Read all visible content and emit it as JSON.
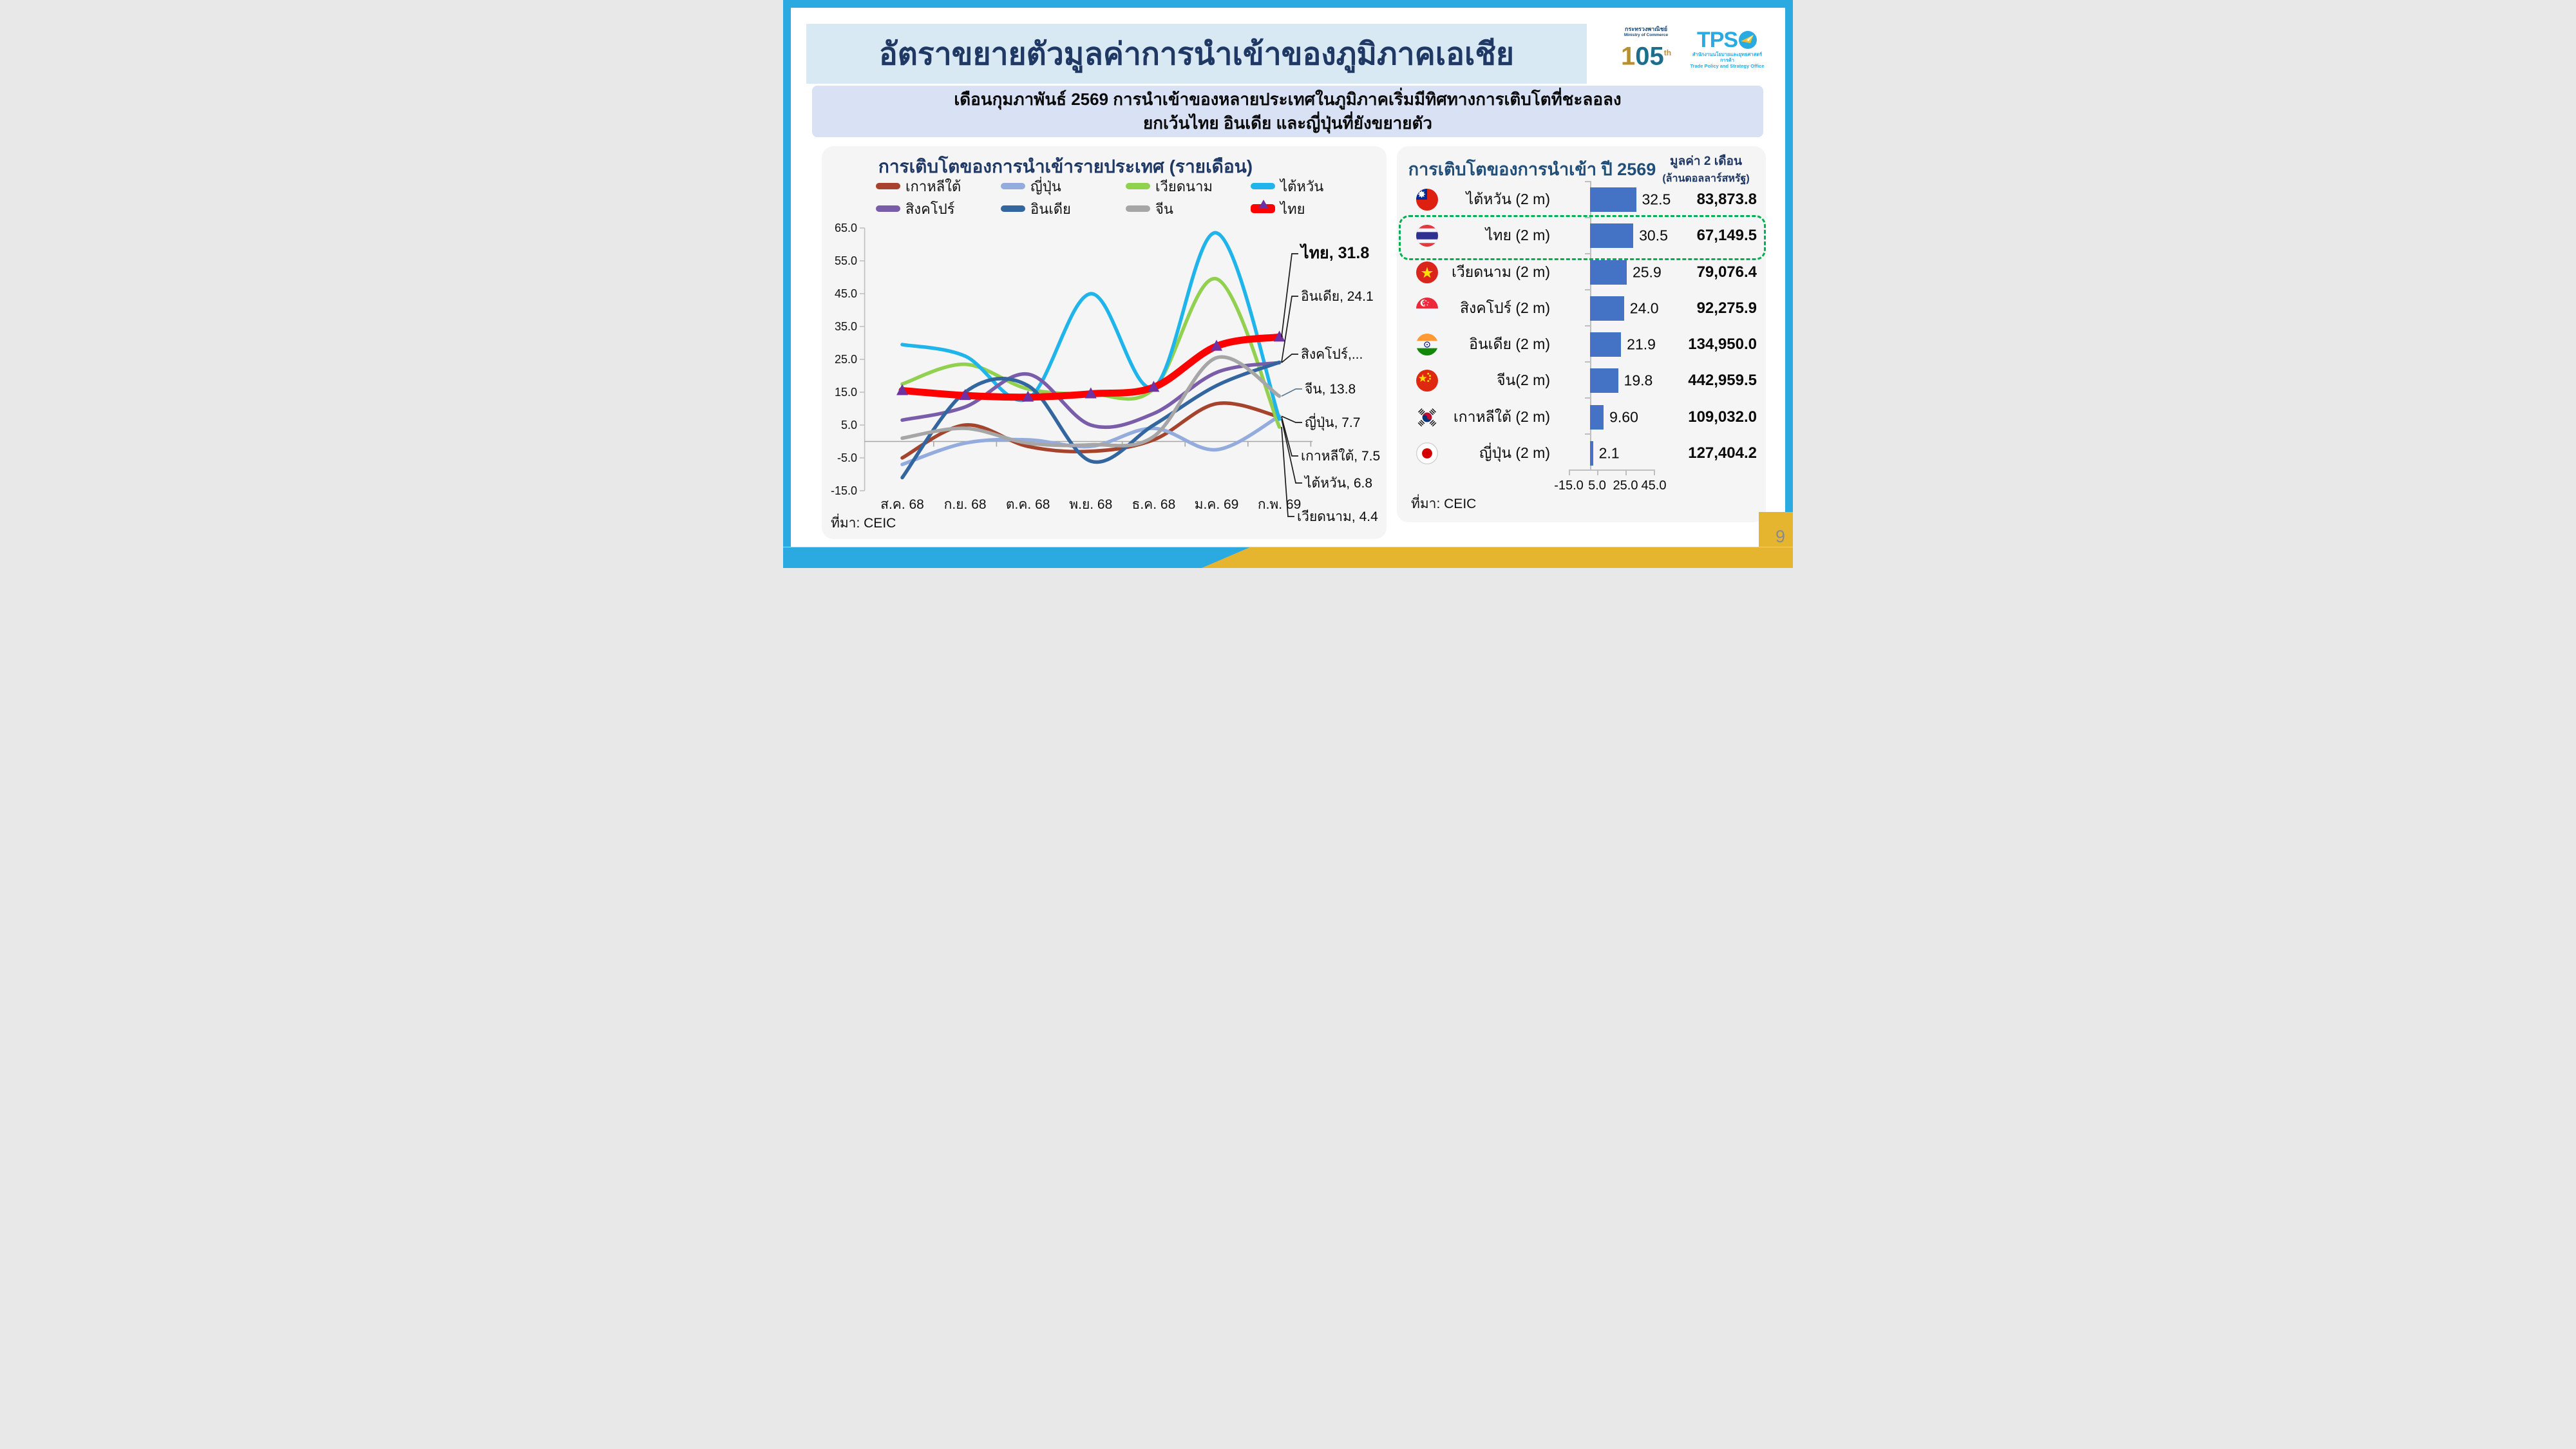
{
  "page": {
    "number": "9"
  },
  "header": {
    "title": "อัตราขยายตัวมูลค่าการนำเข้าของภูมิภาคเอเชีย"
  },
  "logos": {
    "moc": {
      "line1": "กระทรวงพาณิชย์",
      "line2": "Ministry of Commerce",
      "number_1": "1",
      "number_05": "05",
      "suffix": "th"
    },
    "tpso": {
      "acronym_tps": "TPS",
      "line1": "สำนักงานนโยบายและยุทธศาสตร์การค้า",
      "line2": "Trade Policy and Strategy Office"
    }
  },
  "subtitle": {
    "line1": "เดือนกุมภาพันธ์ 2569 การนำเข้าของหลายประเทศในภูมิภาคเริ่มมีทิศทางการเติบโตที่ชะลอลง",
    "line2": "ยกเว้นไทย อินเดีย และญี่ปุ่นที่ยังขยายตัว"
  },
  "line_panel": {
    "source": "ที่มา: CEIC"
  },
  "bar_panel": {
    "source": "ที่มา: CEIC",
    "note_line1": "มูลค่า 2 เดือน",
    "note_line2": "(ล้านดอลลาร์สหรัฐ)"
  },
  "colors": {
    "accent_border": "#2BA9E1",
    "accent_yellow": "#E6B52F",
    "bar_blue": "#4472C4",
    "highlight_green": "#00B050",
    "title_navy": "#1F3864"
  },
  "chart_data": [
    {
      "type": "line",
      "title": "การเติบโตของการนำเข้ารายประเทศ (รายเดือน)",
      "categories": [
        "ส.ค. 68",
        "ก.ย. 68",
        "ต.ค. 68",
        "พ.ย. 68",
        "ธ.ค. 68",
        "ม.ค. 69",
        "ก.พ. 69"
      ],
      "ylabel": "",
      "ylim": [
        -15,
        65
      ],
      "y_ticks": [
        "65.0",
        "55.0",
        "45.0",
        "35.0",
        "25.0",
        "15.0",
        "5.0",
        "-5.0",
        "-15.0"
      ],
      "grid": false,
      "legend_position": "top",
      "series": [
        {
          "name": "เกาหลีใต้",
          "color": "#A5432C",
          "values": [
            -5.0,
            5.0,
            -1.5,
            -3.0,
            0.5,
            11.5,
            7.5
          ]
        },
        {
          "name": "ญี่ปุ่น",
          "color": "#93ACDD",
          "values": [
            -7.0,
            -0.5,
            0.5,
            -1.5,
            4.0,
            -2.5,
            7.7
          ]
        },
        {
          "name": "เวียดนาม",
          "color": "#92D050",
          "values": [
            17.5,
            23.5,
            16.0,
            14.5,
            16.0,
            49.5,
            4.4
          ]
        },
        {
          "name": "ไต้หวัน",
          "color": "#1FB4EA",
          "values": [
            29.5,
            26.0,
            13.0,
            45.0,
            16.5,
            63.5,
            6.8
          ]
        },
        {
          "name": "สิงคโปร์",
          "color": "#7A5DA8",
          "values": [
            6.5,
            10.5,
            20.5,
            5.0,
            8.5,
            21.0,
            24.0
          ]
        },
        {
          "name": "อินเดีย",
          "color": "#33669F",
          "values": [
            -11.0,
            15.0,
            17.0,
            -6.0,
            5.0,
            17.0,
            24.1
          ]
        },
        {
          "name": "จีน",
          "color": "#A6A6A6",
          "values": [
            1.0,
            4.0,
            -0.5,
            -1.0,
            1.5,
            25.5,
            13.8
          ]
        },
        {
          "name": "ไทย",
          "color": "#FF0000",
          "values": [
            15.5,
            14.0,
            13.5,
            14.5,
            16.5,
            29.0,
            31.8
          ],
          "marker": "triangle",
          "marker_color": "#7030A0",
          "emphasis": true
        }
      ],
      "annotations": [
        {
          "text": "ไทย, 31.8",
          "series": "ไทย",
          "bold": true
        },
        {
          "text": "อินเดีย, 24.1",
          "series": "อินเดีย"
        },
        {
          "text": "สิงคโปร์,...",
          "series": "สิงคโปร์"
        },
        {
          "text": "จีน, 13.8",
          "series": "จีน"
        },
        {
          "text": "ญี่ปุ่น, 7.7",
          "series": "ญี่ปุ่น"
        },
        {
          "text": "เกาหลีใต้, 7.5",
          "series": "เกาหลีใต้"
        },
        {
          "text": "ไต้หวัน, 6.8",
          "series": "ไต้หวัน"
        },
        {
          "text": "เวียดนาม, 4.4",
          "series": "เวียดนาม"
        }
      ]
    },
    {
      "type": "bar",
      "orientation": "horizontal",
      "title": "การเติบโตของการนำเข้า ปี 2569",
      "xlim": [
        -15,
        45
      ],
      "x_ticks": [
        "-15.0",
        "5.0",
        "25.0",
        "45.0"
      ],
      "x_tick_values": [
        -15,
        5,
        25,
        45
      ],
      "rows": [
        {
          "label": "ไต้หวัน (2 m)",
          "flag": "taiwan",
          "growth": 32.5,
          "growth_label": "32.5",
          "value_label": "83,873.8"
        },
        {
          "label": "ไทย (2 m)",
          "flag": "thailand",
          "growth": 30.5,
          "growth_label": "30.5",
          "value_label": "67,149.5",
          "highlight": true
        },
        {
          "label": "เวียดนาม (2 m)",
          "flag": "vietnam",
          "growth": 25.9,
          "growth_label": "25.9",
          "value_label": "79,076.4"
        },
        {
          "label": "สิงคโปร์ (2 m)",
          "flag": "singapore",
          "growth": 24.0,
          "growth_label": "24.0",
          "value_label": "92,275.9"
        },
        {
          "label": "อินเดีย (2 m)",
          "flag": "india",
          "growth": 21.9,
          "growth_label": "21.9",
          "value_label": "134,950.0"
        },
        {
          "label": "จีน(2 m)",
          "flag": "china",
          "growth": 19.8,
          "growth_label": "19.8",
          "value_label": "442,959.5"
        },
        {
          "label": "เกาหลีใต้ (2 m)",
          "flag": "south-korea",
          "growth": 9.6,
          "growth_label": "9.60",
          "value_label": "109,032.0"
        },
        {
          "label": "ญี่ปุ่น (2 m)",
          "flag": "japan",
          "growth": 2.1,
          "growth_label": "2.1",
          "value_label": "127,404.2"
        }
      ]
    }
  ]
}
